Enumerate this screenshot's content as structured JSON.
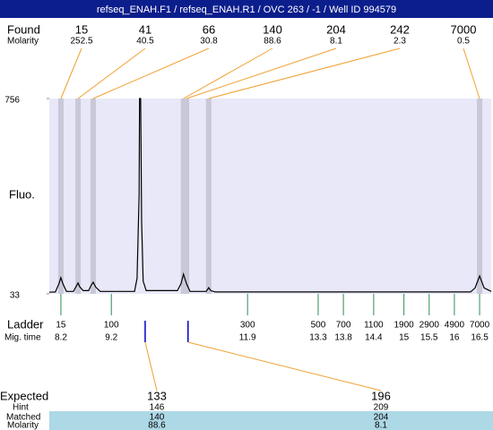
{
  "chart_data": {
    "type": "line",
    "title": "refseq_ENAH.F1 / refseq_ENAH.R1 / OVC 263 / -1 / Well ID 994579",
    "y_label": "Fluo.",
    "ylim": [
      33,
      756
    ],
    "yticks": [
      33,
      756
    ],
    "xlim": [
      7.97,
      16.73
    ],
    "trace": {
      "color": "#000000",
      "x": [
        7.97,
        8.09,
        8.16,
        8.2,
        8.24,
        8.31,
        8.45,
        8.5,
        8.54,
        8.57,
        8.64,
        8.75,
        8.8,
        8.84,
        8.89,
        8.98,
        9.66,
        9.71,
        9.75,
        9.76,
        9.78,
        9.8,
        9.83,
        9.89,
        10.51,
        10.58,
        10.63,
        10.69,
        10.76,
        11.08,
        11.11,
        11.13,
        11.17,
        11.26,
        16.32,
        16.41,
        16.5,
        16.59,
        16.73
      ],
      "y": [
        39,
        40,
        70,
        93,
        70,
        42,
        42,
        60,
        73,
        60,
        45,
        45,
        65,
        76,
        58,
        42,
        42,
        90,
        400,
        756,
        756,
        300,
        80,
        45,
        45,
        70,
        106,
        70,
        42,
        42,
        50,
        56,
        45,
        40,
        40,
        55,
        99,
        55,
        42
      ]
    },
    "found": {
      "label": "Found",
      "molarity_label": "Molarity",
      "sizes": [
        15,
        41,
        66,
        140,
        204,
        242,
        7000
      ],
      "molarity": [
        252.5,
        40.5,
        30.8,
        88.6,
        8.1,
        2.3,
        0.5
      ],
      "x": [
        8.2,
        8.54,
        8.84,
        10.63,
        10.69,
        11.13,
        16.5
      ],
      "color": "#f0a030"
    },
    "ladder": {
      "label": "Ladder",
      "mig_time_label": "Mig. time",
      "sizes": [
        15,
        100,
        300,
        500,
        700,
        1100,
        1900,
        2900,
        4900,
        7000
      ],
      "mig_times": [
        8.2,
        9.2,
        11.9,
        13.3,
        13.8,
        14.4,
        15,
        15.5,
        16,
        16.5
      ],
      "color": "#2e8b57"
    },
    "expected": {
      "label": "Expected",
      "hint_label": "Hint",
      "matched_label": "Matched",
      "molarity_label": "Molarity",
      "sizes": [
        133,
        196
      ],
      "hint": [
        146,
        209
      ],
      "matched": [
        140,
        204
      ],
      "molarity": [
        88.6,
        8.1
      ],
      "x": [
        9.87,
        10.72
      ],
      "color": "#0000cc"
    }
  }
}
